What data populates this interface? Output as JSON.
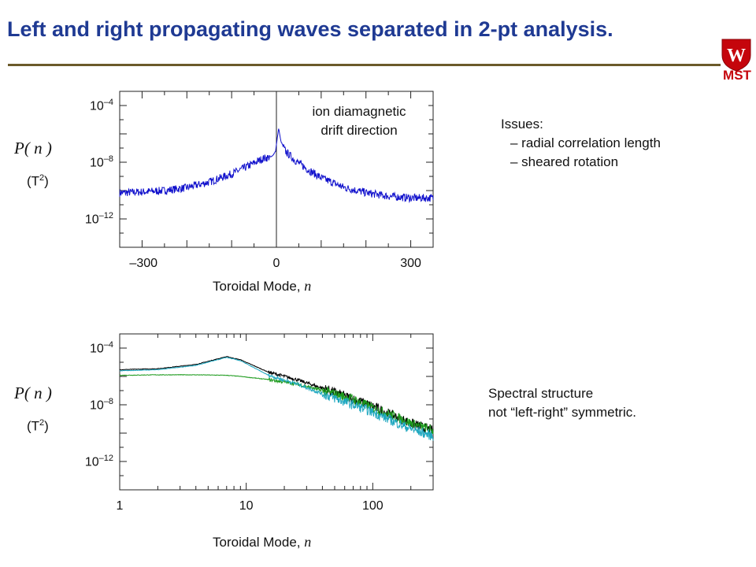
{
  "title": "Left and right propagating waves separated in 2-pt analysis.",
  "logo": {
    "text": "MST",
    "icon": "wisconsin-crest-icon",
    "color": "#c5050c"
  },
  "colors": {
    "title": "#1f3a93",
    "rule": "#6b5a2a",
    "blue": "#1010cc",
    "green": "#1c9a1c",
    "teal": "#20a8c0",
    "black": "#000000"
  },
  "ylabel_math": {
    "p": "P(",
    "n": " n ",
    "close": ")"
  },
  "yunit": {
    "base": "(T",
    "exp": "2",
    "close": ")"
  },
  "xlabel": {
    "text": "Toroidal Mode, ",
    "var": "n"
  },
  "notes_top": {
    "heading": "Issues:",
    "items": [
      "– radial correlation length",
      "– sheared rotation"
    ]
  },
  "notes_bottom": {
    "line1": "Spectral structure",
    "line2": "not “left-right” symmetric."
  },
  "chart_data": [
    {
      "type": "line",
      "x_range": [
        -350,
        350
      ],
      "y_scale": "log",
      "y_range": [
        1e-14,
        0.001
      ],
      "xticks": [
        {
          "value": -300,
          "label": "–300"
        },
        {
          "value": 0,
          "label": "0"
        },
        {
          "value": 300,
          "label": "300"
        }
      ],
      "yticks": [
        {
          "value": 0.0001,
          "base": "10",
          "exp": "–4"
        },
        {
          "value": 1e-08,
          "base": "10",
          "exp": "–8"
        },
        {
          "value": 1e-12,
          "base": "10",
          "exp": "–12"
        }
      ],
      "vline_x": 0,
      "annotation": [
        "ion diamagnetic",
        "drift direction"
      ],
      "series": [
        {
          "color": "#1010cc",
          "points": [
            [
              -350,
              7e-11
            ],
            [
              -300,
              8e-11
            ],
            [
              -250,
              1e-10
            ],
            [
              -200,
              1.6e-10
            ],
            [
              -150,
              4e-10
            ],
            [
              -100,
              1.5e-09
            ],
            [
              -60,
              6e-09
            ],
            [
              -30,
              1.8e-08
            ],
            [
              -10,
              2.5e-08
            ],
            [
              -2,
              6e-08
            ],
            [
              5,
              2.5e-06
            ],
            [
              10,
              3e-07
            ],
            [
              20,
              6e-08
            ],
            [
              40,
              1.5e-08
            ],
            [
              70,
              3e-09
            ],
            [
              100,
              8e-10
            ],
            [
              150,
              1.7e-10
            ],
            [
              200,
              7e-11
            ],
            [
              250,
              4e-11
            ],
            [
              300,
              3e-11
            ],
            [
              350,
              3e-11
            ]
          ]
        }
      ]
    },
    {
      "type": "line",
      "x_scale": "log",
      "x_range": [
        1,
        300
      ],
      "y_scale": "log",
      "y_range": [
        1e-14,
        0.001
      ],
      "xticks": [
        {
          "value": 1,
          "label": "1"
        },
        {
          "value": 10,
          "label": "10"
        },
        {
          "value": 100,
          "label": "100"
        }
      ],
      "yticks": [
        {
          "value": 0.0001,
          "base": "10",
          "exp": "–4"
        },
        {
          "value": 1e-08,
          "base": "10",
          "exp": "–8"
        },
        {
          "value": 1e-12,
          "base": "10",
          "exp": "–12"
        }
      ],
      "series": [
        {
          "color": "#000000",
          "points": [
            [
              1,
              3e-06
            ],
            [
              2,
              3.5e-06
            ],
            [
              4,
              7e-06
            ],
            [
              7,
              2.5e-05
            ],
            [
              9,
              1.5e-05
            ],
            [
              15,
              2e-06
            ],
            [
              25,
              6e-07
            ],
            [
              40,
              1.5e-07
            ],
            [
              70,
              2.5e-08
            ],
            [
              100,
              8e-09
            ],
            [
              150,
              1.5e-09
            ],
            [
              200,
              5e-10
            ],
            [
              300,
              1.5e-10
            ]
          ]
        },
        {
          "color": "#1c9a1c",
          "points": [
            [
              1,
              1.2e-06
            ],
            [
              2,
              1.3e-06
            ],
            [
              4,
              1.3e-06
            ],
            [
              7,
              1.2e-06
            ],
            [
              9,
              1e-06
            ],
            [
              15,
              6e-07
            ],
            [
              25,
              3e-07
            ],
            [
              40,
              1e-07
            ],
            [
              70,
              2.5e-08
            ],
            [
              100,
              6e-09
            ],
            [
              150,
              1.5e-09
            ],
            [
              200,
              5e-10
            ],
            [
              300,
              1.5e-10
            ]
          ]
        },
        {
          "color": "#20a8c0",
          "points": [
            [
              1,
              2.5e-06
            ],
            [
              2,
              3e-06
            ],
            [
              4,
              6e-06
            ],
            [
              7,
              2.2e-05
            ],
            [
              9,
              1.3e-05
            ],
            [
              15,
              1.2e-06
            ],
            [
              25,
              3e-07
            ],
            [
              40,
              6e-08
            ],
            [
              70,
              1e-08
            ],
            [
              100,
              3e-09
            ],
            [
              150,
              6e-10
            ],
            [
              200,
              2e-10
            ],
            [
              300,
              6e-11
            ]
          ]
        }
      ]
    }
  ]
}
